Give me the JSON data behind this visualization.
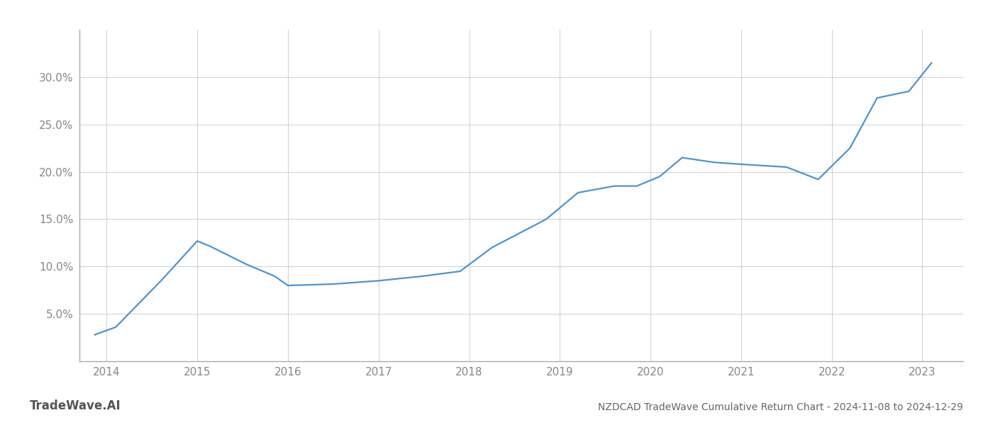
{
  "title": "NZDCAD TradeWave Cumulative Return Chart - 2024-11-08 to 2024-12-29",
  "watermark": "TradeWave.AI",
  "x_values": [
    2013.87,
    2014.1,
    2014.6,
    2015.0,
    2015.15,
    2015.55,
    2015.85,
    2016.0,
    2016.5,
    2017.0,
    2017.5,
    2017.9,
    2018.25,
    2018.55,
    2018.85,
    2019.2,
    2019.6,
    2019.85,
    2020.1,
    2020.35,
    2020.7,
    2021.0,
    2021.5,
    2021.85,
    2022.2,
    2022.5,
    2022.85,
    2023.1
  ],
  "y_values": [
    2.8,
    3.6,
    8.5,
    12.7,
    12.1,
    10.2,
    9.0,
    8.0,
    8.15,
    8.5,
    9.0,
    9.5,
    12.0,
    13.5,
    15.0,
    17.8,
    18.5,
    18.5,
    19.5,
    21.5,
    21.0,
    20.8,
    20.5,
    19.2,
    22.5,
    27.8,
    28.5,
    31.5
  ],
  "line_color": "#4f94cd",
  "line_width": 1.6,
  "background_color": "#ffffff",
  "grid_color": "#d0d0d0",
  "tick_color": "#888888",
  "title_color": "#666666",
  "watermark_color": "#555555",
  "spine_color": "#aaaaaa",
  "xlim": [
    2013.7,
    2023.45
  ],
  "ylim": [
    0,
    35
  ],
  "yticks": [
    5.0,
    10.0,
    15.0,
    20.0,
    25.0,
    30.0
  ],
  "xticks": [
    2014,
    2015,
    2016,
    2017,
    2018,
    2019,
    2020,
    2021,
    2022,
    2023
  ],
  "title_fontsize": 10,
  "tick_fontsize": 11,
  "watermark_fontsize": 12
}
